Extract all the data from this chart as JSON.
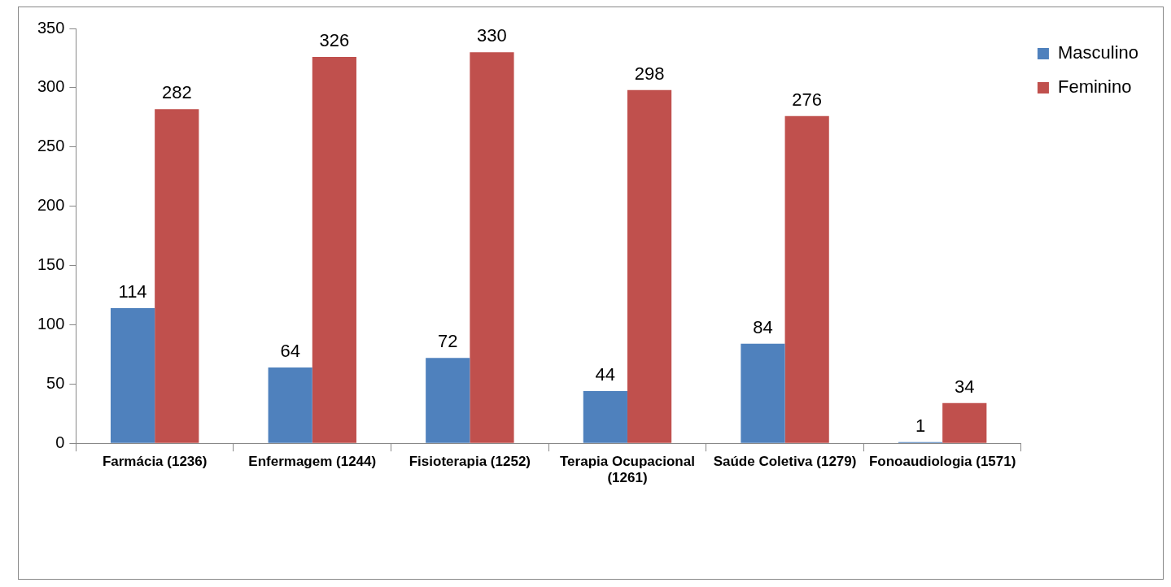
{
  "chart_data": {
    "type": "bar",
    "categories": [
      "Farmácia (1236)",
      "Enfermagem (1244)",
      "Fisioterapia (1252)",
      "Terapia Ocupacional (1261)",
      "Saúde Coletiva (1279)",
      "Fonoaudiologia (1571)"
    ],
    "series": [
      {
        "name": "Masculino",
        "color": "#4f81bd",
        "values": [
          114,
          64,
          72,
          44,
          84,
          1
        ]
      },
      {
        "name": "Feminino",
        "color": "#c0504d",
        "values": [
          282,
          326,
          330,
          298,
          276,
          34
        ]
      }
    ],
    "ylim": [
      0,
      350
    ],
    "yticks": [
      0,
      50,
      100,
      150,
      200,
      250,
      300,
      350
    ],
    "grid": false,
    "legend": "right",
    "data_labels": true
  }
}
